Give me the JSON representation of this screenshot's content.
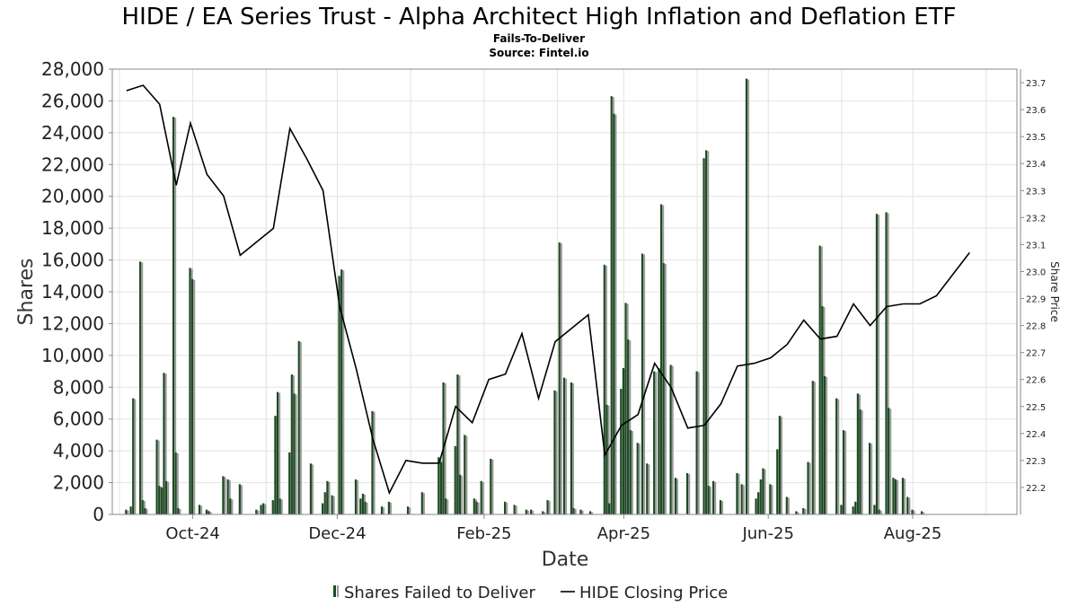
{
  "header": {
    "title": "HIDE / EA Series Trust - Alpha Architect High Inflation and Deflation ETF",
    "subtitle": "Fails-To-Deliver",
    "source": "Source: Fintel.io"
  },
  "colors": {
    "bar_dark": "#1d4a22",
    "bar_light": "#9a9a9a",
    "price_line": "#000000",
    "grid": "#e3e3e3"
  },
  "chart_data": {
    "type": "bar",
    "title": "HIDE / EA Series Trust - Alpha Architect High Inflation and Deflation ETF",
    "xlabel": "Date",
    "ylabel": "Shares",
    "y2label": "Share Price",
    "ylim": [
      0,
      28000
    ],
    "y2lim": [
      22.1,
      23.75
    ],
    "xlim": [
      "2024-08-28",
      "2025-09-14"
    ],
    "yticks": [
      "0",
      "2,000",
      "4,000",
      "6,000",
      "8,000",
      "10,000",
      "12,000",
      "14,000",
      "16,000",
      "18,000",
      "20,000",
      "22,000",
      "24,000",
      "26,000",
      "28,000"
    ],
    "y2ticks": [
      "22.2",
      "22.3",
      "22.4",
      "22.5",
      "22.6",
      "22.7",
      "22.8",
      "22.9",
      "23.0",
      "23.1",
      "23.2",
      "23.3",
      "23.4",
      "23.5",
      "23.6",
      "23.7"
    ],
    "xticks": [
      {
        "label": "Oct-24",
        "date": "2024-10-01"
      },
      {
        "label": "Dec-24",
        "date": "2024-12-01"
      },
      {
        "label": "Feb-25",
        "date": "2025-02-01"
      },
      {
        "label": "Apr-25",
        "date": "2025-04-01"
      },
      {
        "label": "Jun-25",
        "date": "2025-06-01"
      },
      {
        "label": "Aug-25",
        "date": "2025-08-01"
      }
    ],
    "grid": true,
    "legend_position": "bottom",
    "series": [
      {
        "name": "Shares Failed to Deliver",
        "type": "bar",
        "points": [
          [
            "2024-09-03",
            300
          ],
          [
            "2024-09-05",
            500
          ],
          [
            "2024-09-06",
            7300
          ],
          [
            "2024-09-09",
            15900
          ],
          [
            "2024-09-10",
            900
          ],
          [
            "2024-09-11",
            400
          ],
          [
            "2024-09-16",
            4700
          ],
          [
            "2024-09-17",
            1800
          ],
          [
            "2024-09-18",
            1700
          ],
          [
            "2024-09-19",
            8900
          ],
          [
            "2024-09-20",
            2100
          ],
          [
            "2024-09-23",
            25000
          ],
          [
            "2024-09-24",
            3900
          ],
          [
            "2024-09-25",
            400
          ],
          [
            "2024-09-30",
            15500
          ],
          [
            "2024-10-01",
            14800
          ],
          [
            "2024-10-04",
            600
          ],
          [
            "2024-10-07",
            300
          ],
          [
            "2024-10-08",
            200
          ],
          [
            "2024-10-14",
            2400
          ],
          [
            "2024-10-16",
            2200
          ],
          [
            "2024-10-17",
            1000
          ],
          [
            "2024-10-21",
            1900
          ],
          [
            "2024-10-28",
            300
          ],
          [
            "2024-10-30",
            600
          ],
          [
            "2024-10-31",
            700
          ],
          [
            "2024-11-04",
            900
          ],
          [
            "2024-11-05",
            6200
          ],
          [
            "2024-11-06",
            7700
          ],
          [
            "2024-11-07",
            1000
          ],
          [
            "2024-11-11",
            3900
          ],
          [
            "2024-11-12",
            8800
          ],
          [
            "2024-11-13",
            7600
          ],
          [
            "2024-11-15",
            10900
          ],
          [
            "2024-11-20",
            3200
          ],
          [
            "2024-11-25",
            700
          ],
          [
            "2024-11-26",
            1400
          ],
          [
            "2024-11-27",
            2100
          ],
          [
            "2024-11-29",
            1200
          ],
          [
            "2024-12-02",
            15000
          ],
          [
            "2024-12-03",
            15400
          ],
          [
            "2024-12-09",
            2200
          ],
          [
            "2024-12-11",
            1000
          ],
          [
            "2024-12-12",
            1300
          ],
          [
            "2024-12-13",
            800
          ],
          [
            "2024-12-16",
            6500
          ],
          [
            "2024-12-20",
            500
          ],
          [
            "2024-12-23",
            800
          ],
          [
            "2024-12-31",
            500
          ],
          [
            "2025-01-06",
            1400
          ],
          [
            "2025-01-13",
            3600
          ],
          [
            "2025-01-14",
            3300
          ],
          [
            "2025-01-15",
            8300
          ],
          [
            "2025-01-16",
            1000
          ],
          [
            "2025-01-20",
            4300
          ],
          [
            "2025-01-21",
            8800
          ],
          [
            "2025-01-22",
            2500
          ],
          [
            "2025-01-24",
            5000
          ],
          [
            "2025-01-28",
            1000
          ],
          [
            "2025-01-29",
            800
          ],
          [
            "2025-01-31",
            2100
          ],
          [
            "2025-02-04",
            3500
          ],
          [
            "2025-02-10",
            800
          ],
          [
            "2025-02-14",
            600
          ],
          [
            "2025-02-19",
            300
          ],
          [
            "2025-02-21",
            300
          ],
          [
            "2025-02-26",
            200
          ],
          [
            "2025-02-28",
            900
          ],
          [
            "2025-03-03",
            7800
          ],
          [
            "2025-03-05",
            17100
          ],
          [
            "2025-03-07",
            8600
          ],
          [
            "2025-03-10",
            8300
          ],
          [
            "2025-03-11",
            400
          ],
          [
            "2025-03-14",
            300
          ],
          [
            "2025-03-18",
            200
          ],
          [
            "2025-03-24",
            15700
          ],
          [
            "2025-03-25",
            6900
          ],
          [
            "2025-03-26",
            700
          ],
          [
            "2025-03-27",
            26300
          ],
          [
            "2025-03-28",
            25200
          ],
          [
            "2025-03-31",
            7900
          ],
          [
            "2025-04-01",
            9200
          ],
          [
            "2025-04-02",
            13300
          ],
          [
            "2025-04-03",
            11000
          ],
          [
            "2025-04-04",
            5300
          ],
          [
            "2025-04-07",
            4500
          ],
          [
            "2025-04-09",
            16400
          ],
          [
            "2025-04-11",
            3200
          ],
          [
            "2025-04-14",
            9000
          ],
          [
            "2025-04-16",
            9200
          ],
          [
            "2025-04-17",
            19500
          ],
          [
            "2025-04-18",
            15800
          ],
          [
            "2025-04-21",
            9400
          ],
          [
            "2025-04-23",
            2300
          ],
          [
            "2025-04-28",
            2600
          ],
          [
            "2025-05-02",
            9000
          ],
          [
            "2025-05-05",
            22400
          ],
          [
            "2025-05-06",
            22900
          ],
          [
            "2025-05-07",
            1800
          ],
          [
            "2025-05-09",
            2100
          ],
          [
            "2025-05-12",
            900
          ],
          [
            "2025-05-19",
            2600
          ],
          [
            "2025-05-21",
            1900
          ],
          [
            "2025-05-23",
            27400
          ],
          [
            "2025-05-27",
            1000
          ],
          [
            "2025-05-28",
            1400
          ],
          [
            "2025-05-29",
            2200
          ],
          [
            "2025-05-30",
            2900
          ],
          [
            "2025-06-02",
            1900
          ],
          [
            "2025-06-05",
            4100
          ],
          [
            "2025-06-06",
            6200
          ],
          [
            "2025-06-09",
            1100
          ],
          [
            "2025-06-13",
            200
          ],
          [
            "2025-06-16",
            400
          ],
          [
            "2025-06-18",
            3300
          ],
          [
            "2025-06-20",
            8400
          ],
          [
            "2025-06-23",
            16900
          ],
          [
            "2025-06-24",
            13100
          ],
          [
            "2025-06-25",
            8700
          ],
          [
            "2025-06-30",
            7300
          ],
          [
            "2025-07-02",
            600
          ],
          [
            "2025-07-03",
            5300
          ],
          [
            "2025-07-07",
            500
          ],
          [
            "2025-07-08",
            800
          ],
          [
            "2025-07-09",
            7600
          ],
          [
            "2025-07-10",
            6600
          ],
          [
            "2025-07-14",
            4500
          ],
          [
            "2025-07-16",
            600
          ],
          [
            "2025-07-17",
            18900
          ],
          [
            "2025-07-18",
            300
          ],
          [
            "2025-07-21",
            19000
          ],
          [
            "2025-07-22",
            6700
          ],
          [
            "2025-07-24",
            2300
          ],
          [
            "2025-07-25",
            2200
          ],
          [
            "2025-07-28",
            2300
          ],
          [
            "2025-07-30",
            1100
          ],
          [
            "2025-08-01",
            300
          ],
          [
            "2025-08-05",
            200
          ]
        ]
      },
      {
        "name": "HIDE Closing Price",
        "type": "line",
        "points": [
          [
            "2024-09-03",
            23.67
          ],
          [
            "2024-09-10",
            23.69
          ],
          [
            "2024-09-17",
            23.62
          ],
          [
            "2024-09-24",
            23.32
          ],
          [
            "2024-09-30",
            23.55
          ],
          [
            "2024-10-07",
            23.36
          ],
          [
            "2024-10-14",
            23.28
          ],
          [
            "2024-10-21",
            23.06
          ],
          [
            "2024-10-28",
            23.11
          ],
          [
            "2024-11-04",
            23.16
          ],
          [
            "2024-11-11",
            23.53
          ],
          [
            "2024-11-18",
            23.42
          ],
          [
            "2024-11-25",
            23.3
          ],
          [
            "2024-12-02",
            22.87
          ],
          [
            "2024-12-09",
            22.64
          ],
          [
            "2024-12-16",
            22.38
          ],
          [
            "2024-12-23",
            22.18
          ],
          [
            "2024-12-30",
            22.3
          ],
          [
            "2025-01-06",
            22.29
          ],
          [
            "2025-01-13",
            22.29
          ],
          [
            "2025-01-20",
            22.5
          ],
          [
            "2025-01-27",
            22.44
          ],
          [
            "2025-02-03",
            22.6
          ],
          [
            "2025-02-10",
            22.62
          ],
          [
            "2025-02-17",
            22.77
          ],
          [
            "2025-02-24",
            22.53
          ],
          [
            "2025-03-03",
            22.74
          ],
          [
            "2025-03-10",
            22.79
          ],
          [
            "2025-03-17",
            22.84
          ],
          [
            "2025-03-24",
            22.32
          ],
          [
            "2025-03-31",
            22.43
          ],
          [
            "2025-04-07",
            22.47
          ],
          [
            "2025-04-14",
            22.66
          ],
          [
            "2025-04-21",
            22.57
          ],
          [
            "2025-04-28",
            22.42
          ],
          [
            "2025-05-05",
            22.43
          ],
          [
            "2025-05-12",
            22.51
          ],
          [
            "2025-05-19",
            22.65
          ],
          [
            "2025-05-26",
            22.66
          ],
          [
            "2025-06-02",
            22.68
          ],
          [
            "2025-06-09",
            22.73
          ],
          [
            "2025-06-16",
            22.82
          ],
          [
            "2025-06-23",
            22.75
          ],
          [
            "2025-06-30",
            22.76
          ],
          [
            "2025-07-07",
            22.88
          ],
          [
            "2025-07-14",
            22.8
          ],
          [
            "2025-07-21",
            22.87
          ],
          [
            "2025-07-28",
            22.88
          ],
          [
            "2025-08-04",
            22.88
          ],
          [
            "2025-08-11",
            22.91
          ],
          [
            "2025-08-18",
            22.99
          ],
          [
            "2025-08-25",
            23.07
          ]
        ]
      }
    ]
  },
  "legend": {
    "bar_label": "Shares Failed to Deliver",
    "line_label": "HIDE Closing Price"
  }
}
